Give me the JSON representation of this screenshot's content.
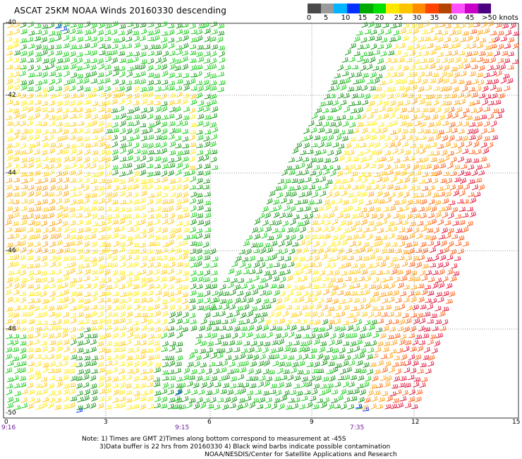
{
  "title": "ASCAT 25KM NOAA Winds 20160330 descending",
  "colorbar": {
    "colors": [
      "#4a4a4a",
      "#9a9a9a",
      "#00b4ff",
      "#0032ff",
      "#00aa00",
      "#00e000",
      "#ffe800",
      "#ffc400",
      "#ff8c00",
      "#ff4400",
      "#b44500",
      "#ff50ff",
      "#c800c8",
      "#4b0082"
    ],
    "labels": [
      "0",
      "5",
      "10",
      "15",
      "20",
      "25",
      "30",
      "35",
      "40",
      "45",
      ">50 knots"
    ]
  },
  "axes": {
    "lat_labels": [
      "-40",
      "-42",
      "-44",
      "-46",
      "-48",
      "-50"
    ],
    "lon_labels": [
      "0",
      "3",
      "6",
      "9",
      "12",
      "15"
    ]
  },
  "time_labels": [
    "9:16",
    "9:15",
    "7:35"
  ],
  "notes": [
    "Note: 1) Times are GMT 2)Times along bottom correspond to measurement at -45S",
    "3)Data buffer is 22 hrs from 20160330 4) Black wind barbs indicate possible contamination",
    "NOAA/NESDIS/Center for Satellite Applications and Research"
  ],
  "wind_colors": {
    "green_dark": "#008c00",
    "green_light": "#00c800",
    "yellow": "#ffe800",
    "gold": "#ffc400",
    "orange": "#ff9a00",
    "red_orange": "#ff5000",
    "red": "#e0002a",
    "blue": "#0032ff"
  }
}
